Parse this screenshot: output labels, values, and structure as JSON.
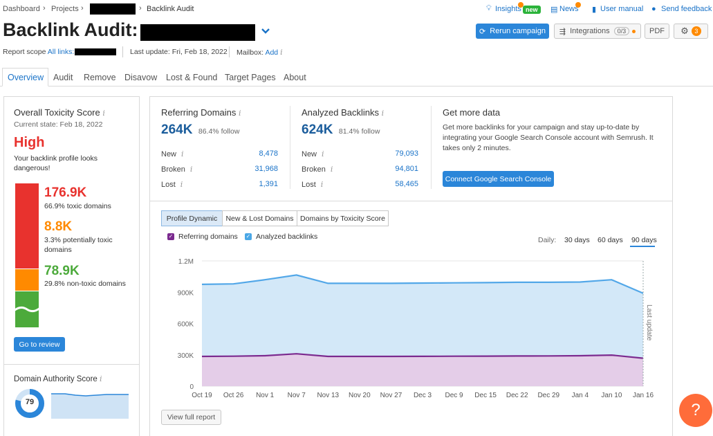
{
  "breadcrumb": {
    "items": [
      "Dashboard",
      "Projects"
    ],
    "current": "Backlink Audit"
  },
  "header_links": {
    "insights": "Insights",
    "insights_badge": "new",
    "news": "News",
    "manual": "User manual",
    "feedback": "Send feedback"
  },
  "page": {
    "title": "Backlink Audit:"
  },
  "actions": {
    "rerun": "Rerun campaign",
    "integrations": "Integrations",
    "integrations_count": "0/3",
    "pdf": "PDF",
    "settings_badge": "3"
  },
  "scope": {
    "label": "Report scope",
    "value": "All links:",
    "last_update": "Last update: Fri, Feb 18, 2022",
    "mailbox_label": "Mailbox:",
    "mailbox_action": "Add"
  },
  "tabs": [
    "Overview",
    "Audit",
    "Remove",
    "Disavow",
    "Lost & Found",
    "Target Pages",
    "About"
  ],
  "toxicity": {
    "title": "Overall Toxicity Score",
    "state": "Current state: Feb 18, 2022",
    "level": "High",
    "description": "Your backlink profile looks dangerous!",
    "toxic_value": "176.9K",
    "toxic_desc": "66.9% toxic domains",
    "potential_value": "8.8K",
    "potential_desc": "3.3% potentially toxic domains",
    "non_toxic_value": "78.9K",
    "non_toxic_desc": "29.8% non-toxic domains",
    "toxic_pct": 66.9,
    "potential_pct": 3.3,
    "non_toxic_pct": 29.8,
    "review_button": "Go to review"
  },
  "authority": {
    "title": "Domain Authority Score",
    "score": "79"
  },
  "referring": {
    "title": "Referring Domains",
    "value": "264K",
    "follow": "86.4% follow",
    "rows": [
      {
        "label": "New",
        "value": "8,478"
      },
      {
        "label": "Broken",
        "value": "31,968"
      },
      {
        "label": "Lost",
        "value": "1,391"
      }
    ]
  },
  "analyzed": {
    "title": "Analyzed Backlinks",
    "value": "624K",
    "follow": "81.4% follow",
    "rows": [
      {
        "label": "New",
        "value": "79,093"
      },
      {
        "label": "Broken",
        "value": "94,801"
      },
      {
        "label": "Lost",
        "value": "58,465"
      }
    ]
  },
  "more_data": {
    "title": "Get more data",
    "text": "Get more backlinks for your campaign and stay up-to-date by integrating your Google Search Console account with Semrush. It takes only 2 minutes.",
    "button": "Connect Google Search Console"
  },
  "chart_tabs": [
    "Profile Dynamic",
    "New & Lost Domains",
    "Domains by Toxicity Score"
  ],
  "legend": {
    "referring": "Referring domains",
    "backlinks": "Analyzed backlinks"
  },
  "period": {
    "label": "Daily:",
    "options": [
      "30 days",
      "60 days",
      "90 days"
    ],
    "active": "90 days"
  },
  "chart_annotation": "Last update",
  "view_report": "View full report",
  "help": "?",
  "colors": {
    "blue": "#2b86d9",
    "toxic": "#e8322e",
    "potential": "#ff8a00",
    "safe": "#4caa3b",
    "purple": "#7b2a8f"
  },
  "chart_data": {
    "type": "area",
    "x": [
      "Oct 19",
      "Oct 26",
      "Nov 1",
      "Nov 7",
      "Nov 13",
      "Nov 20",
      "Nov 27",
      "Dec 3",
      "Dec 9",
      "Dec 15",
      "Dec 22",
      "Dec 29",
      "Jan 4",
      "Jan 10",
      "Jan 16"
    ],
    "ylim": [
      0,
      1200000
    ],
    "y_ticks": [
      "0",
      "300K",
      "600K",
      "900K",
      "1.2M"
    ],
    "series": [
      {
        "name": "Analyzed backlinks",
        "values": [
          975000,
          980000,
          1020000,
          1065000,
          985000,
          985000,
          985000,
          988000,
          990000,
          992000,
          995000,
          995000,
          998000,
          1020000,
          890000
        ]
      },
      {
        "name": "Referring domains",
        "values": [
          285000,
          287000,
          292000,
          310000,
          285000,
          285000,
          285000,
          286000,
          287000,
          288000,
          289000,
          290000,
          292000,
          298000,
          268000
        ]
      }
    ]
  }
}
